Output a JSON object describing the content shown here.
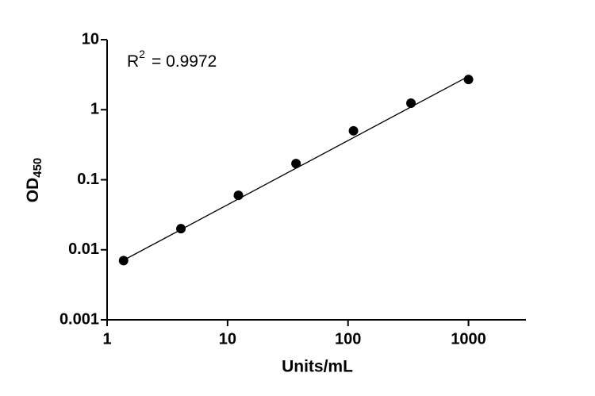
{
  "chart_data": {
    "type": "scatter",
    "x_label": "Units/mL",
    "y_label": {
      "text": "OD",
      "subscript": "450"
    },
    "annotation": {
      "text": "R",
      "superscript": "2",
      "rest": "= 0.9972"
    },
    "x": [
      1.37,
      4.1,
      12.3,
      37,
      111,
      333,
      1000
    ],
    "values": [
      0.007,
      0.02,
      0.06,
      0.17,
      0.5,
      1.24,
      2.7
    ],
    "color": "#000000",
    "fit_line": {
      "x": [
        1.37,
        1000
      ],
      "values": [
        0.0071,
        3.0
      ]
    },
    "xlog": true,
    "ylog": true,
    "xlim": [
      1,
      3000
    ],
    "ylim": [
      0.001,
      10
    ],
    "xticks": [
      1,
      10,
      100,
      1000
    ],
    "yticks": [
      0.001,
      0.01,
      0.1,
      1,
      10
    ]
  }
}
